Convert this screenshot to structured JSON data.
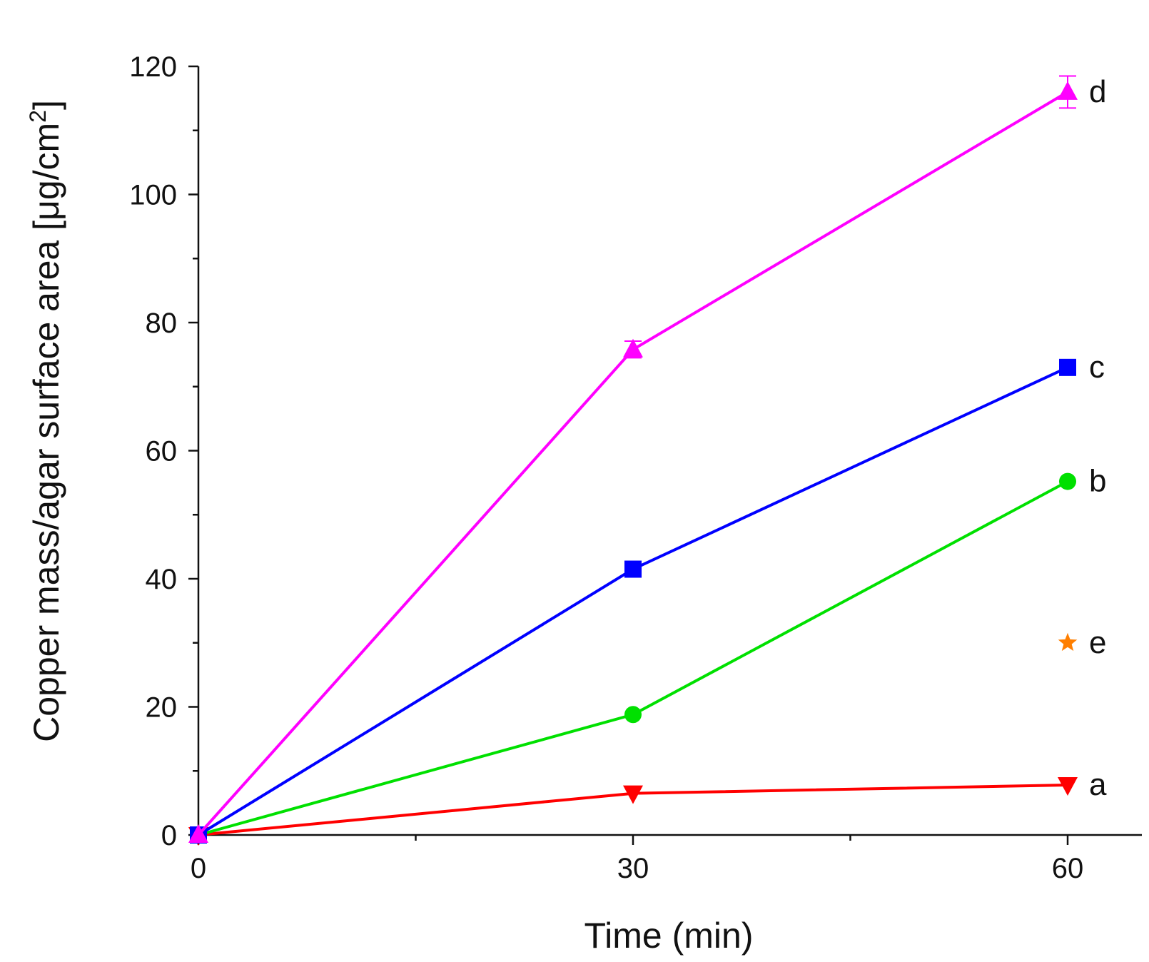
{
  "chart_data": {
    "type": "line",
    "xlabel": "Time (min)",
    "ylabel": "Copper mass/agar surface area [μg/cm",
    "ylabel_sup": "2",
    "ylabel_suffix": "]",
    "xlim": [
      0,
      65
    ],
    "ylim": [
      0,
      120
    ],
    "x_ticks": [
      0,
      30,
      60
    ],
    "x_minor_ticks": [
      15,
      45
    ],
    "y_ticks": [
      0,
      20,
      40,
      60,
      80,
      100,
      120
    ],
    "y_minor_ticks": [
      10,
      30,
      50,
      70,
      90,
      110
    ],
    "series": [
      {
        "name": "a",
        "color": "#ff0000",
        "marker": "triangle-down",
        "x": [
          0,
          30,
          60
        ],
        "values": [
          0,
          6.5,
          7.8
        ],
        "error": [
          0,
          0,
          0
        ]
      },
      {
        "name": "b",
        "color": "#00e000",
        "marker": "circle",
        "x": [
          0,
          30,
          60
        ],
        "values": [
          0,
          18.8,
          55.2
        ],
        "error": [
          0,
          0,
          0
        ]
      },
      {
        "name": "c",
        "color": "#0000ff",
        "marker": "square",
        "x": [
          0,
          30,
          60
        ],
        "values": [
          0,
          41.5,
          73
        ],
        "error": [
          0,
          0,
          0
        ]
      },
      {
        "name": "d",
        "color": "#ff00ff",
        "marker": "triangle-up",
        "x": [
          0,
          30,
          60
        ],
        "values": [
          0,
          75.8,
          116
        ],
        "error": [
          0,
          1.3,
          2.5
        ]
      },
      {
        "name": "e",
        "color": "#ff7f00",
        "marker": "star",
        "x": [
          60
        ],
        "values": [
          30
        ],
        "error": [
          0
        ]
      }
    ]
  }
}
